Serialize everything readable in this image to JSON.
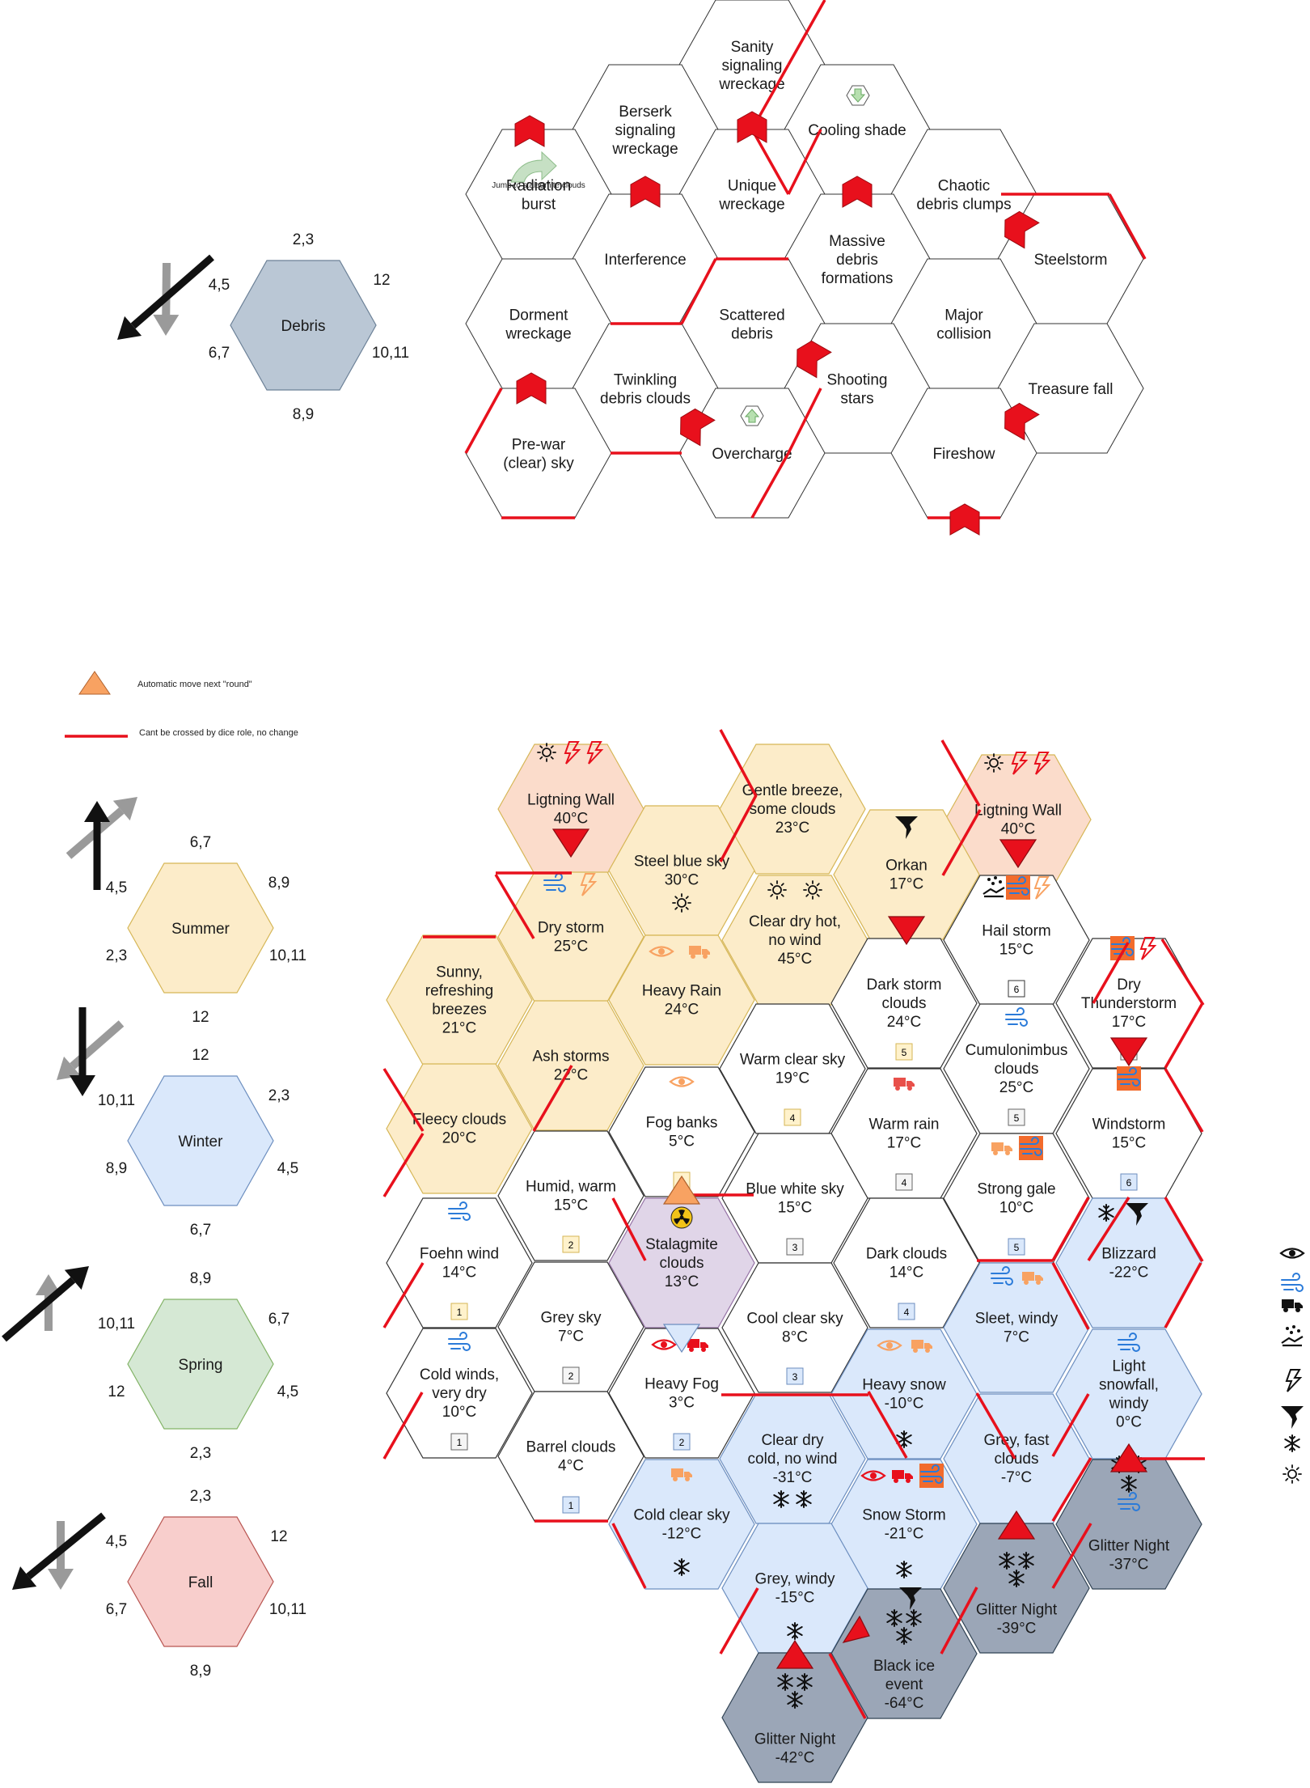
{
  "legend": {
    "auto_move": "Automatic move next \"round\"",
    "no_cross": "Cant be crossed by dice role, no change"
  },
  "colors": {
    "summer": "#fcecc9",
    "winter": "#dae8fb",
    "spring": "#d5e8d4",
    "fall": "#f8cecc",
    "debris": "#bac7d5",
    "special": "#fbdccb",
    "glitter": "#9ba6b7",
    "stalagmite": "#e0d5e8",
    "barrier": "#e8101c",
    "arrow_red": "#e8101c",
    "accent_orange": "#f8a262"
  },
  "debris_dial": {
    "center": "Debris",
    "top": "2,3",
    "top_right": "12",
    "bottom_right": "10,11",
    "bottom": "8,9",
    "bottom_left": "6,7",
    "top_left": "4,5"
  },
  "season_dials": [
    {
      "center": "Summer",
      "top": "6,7",
      "top_right": "8,9",
      "bottom_right": "10,11",
      "bottom": "12",
      "bottom_left": "2,3",
      "top_left": "4,5"
    },
    {
      "center": "Winter",
      "top": "12",
      "top_right": "2,3",
      "bottom_right": "4,5",
      "bottom": "6,7",
      "bottom_left": "8,9",
      "top_left": "10,11"
    },
    {
      "center": "Spring",
      "top": "8,9",
      "top_right": "6,7",
      "bottom_right": "4,5",
      "bottom": "2,3",
      "bottom_left": "12",
      "top_left": "10,11"
    },
    {
      "center": "Fall",
      "top": "2,3",
      "top_right": "12",
      "bottom_right": "10,11",
      "bottom": "8,9",
      "bottom_left": "6,7",
      "top_left": "4,5"
    }
  ],
  "debris_cells": [
    {
      "name": "Sanity signaling wreckage"
    },
    {
      "name": "Berserk signaling wreckage"
    },
    {
      "name": "Cooling shade"
    },
    {
      "name": "Radiation burst",
      "note": "Jump to stalagmite clouds"
    },
    {
      "name": "Unique wreckage"
    },
    {
      "name": "Chaotic debris clumps"
    },
    {
      "name": "Interference"
    },
    {
      "name": "Massive debris formations"
    },
    {
      "name": "Steelstorm"
    },
    {
      "name": "Dorment wreckage"
    },
    {
      "name": "Scattered debris"
    },
    {
      "name": "Major collision"
    },
    {
      "name": "Twinkling debris clouds"
    },
    {
      "name": "Shooting stars"
    },
    {
      "name": "Treasure fall"
    },
    {
      "name": "Pre-war (clear) sky"
    },
    {
      "name": "Overcharge"
    },
    {
      "name": "Fireshow"
    }
  ],
  "weather_cells": [
    {
      "name": "Ligtning Wall",
      "temp": "40°C"
    },
    {
      "name": "Gentle breeze, some clouds",
      "temp": "23°C"
    },
    {
      "name": "Ligtning Wall",
      "temp": "40°C"
    },
    {
      "name": "Steel blue sky",
      "temp": "30°C"
    },
    {
      "name": "Orkan",
      "temp": "17°C"
    },
    {
      "name": "Dry storm",
      "temp": "25°C"
    },
    {
      "name": "Clear dry hot, no wind",
      "temp": "45°C"
    },
    {
      "name": "Hail storm",
      "temp": "15°C",
      "num": "6"
    },
    {
      "name": "Sunny, refreshing breezes",
      "temp": "21°C"
    },
    {
      "name": "Heavy Rain",
      "temp": "24°C"
    },
    {
      "name": "Dark storm clouds",
      "temp": "24°C",
      "num": "5"
    },
    {
      "name": "Dry Thunderstorm",
      "temp": "17°C",
      "num": "6"
    },
    {
      "name": "Ash storms",
      "temp": "22°C"
    },
    {
      "name": "Warm clear sky",
      "temp": "19°C",
      "num": "4"
    },
    {
      "name": "Cumulonimbus clouds",
      "temp": "25°C",
      "num": "5"
    },
    {
      "name": "Fleecy clouds",
      "temp": "20°C"
    },
    {
      "name": "Fog banks",
      "temp": "5°C",
      "num": "3"
    },
    {
      "name": "Warm rain",
      "temp": "17°C",
      "num": "4"
    },
    {
      "name": "Windstorm",
      "temp": "15°C",
      "num": "6"
    },
    {
      "name": "Humid, warm",
      "temp": "15°C",
      "num": "2"
    },
    {
      "name": "Blue white sky",
      "temp": "15°C",
      "num": "3"
    },
    {
      "name": "Strong gale",
      "temp": "10°C",
      "num": "5"
    },
    {
      "name": "Foehn wind",
      "temp": "14°C",
      "num": "1"
    },
    {
      "name": "Stalagmite clouds",
      "temp": "13°C"
    },
    {
      "name": "Dark clouds",
      "temp": "14°C",
      "num": "4"
    },
    {
      "name": "Blizzard",
      "temp": "-22°C"
    },
    {
      "name": "Grey sky",
      "temp": "7°C",
      "num": "2"
    },
    {
      "name": "Cool clear sky",
      "temp": "8°C",
      "num": "3"
    },
    {
      "name": "Sleet, windy",
      "temp": "7°C"
    },
    {
      "name": "Cold winds, very dry",
      "temp": "10°C",
      "num": "1"
    },
    {
      "name": "Heavy Fog",
      "temp": "3°C",
      "num": "2"
    },
    {
      "name": "Heavy snow",
      "temp": "-10°C"
    },
    {
      "name": "Light snowfall, windy",
      "temp": "0°C"
    },
    {
      "name": "Barrel clouds",
      "temp": "4°C",
      "num": "1"
    },
    {
      "name": "Clear dry cold, no wind",
      "temp": "-31°C"
    },
    {
      "name": "Grey, fast clouds",
      "temp": "-7°C"
    },
    {
      "name": "Cold clear sky",
      "temp": "-12°C"
    },
    {
      "name": "Snow Storm",
      "temp": "-21°C"
    },
    {
      "name": "Glitter Night",
      "temp": "-37°C"
    },
    {
      "name": "Grey, windy",
      "temp": "-15°C"
    },
    {
      "name": "Glitter Night",
      "temp": "-39°C"
    },
    {
      "name": "Black ice event",
      "temp": "-64°C"
    },
    {
      "name": "Glitter Night",
      "temp": "-42°C"
    }
  ],
  "icon_legend": [
    "eye-icon",
    "wind-icon",
    "truck-icon",
    "hail-icon",
    "lightning-icon",
    "tornado-icon",
    "snowflake-icon",
    "sun-icon"
  ]
}
